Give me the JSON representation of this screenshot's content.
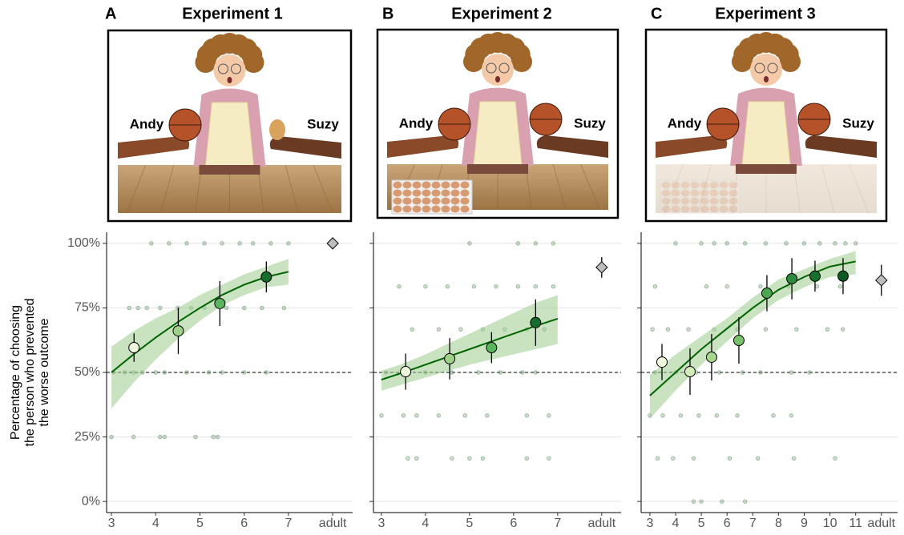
{
  "y_label": [
    "Percentage of choosing",
    "the person who prevented",
    "the worse outcome"
  ],
  "chart_data": [
    {
      "type": "scatter",
      "panel": "A",
      "title": "Experiment 1",
      "image_labels": [
        "Andy",
        "Suzy"
      ],
      "xlim": [
        2.89,
        8.45
      ],
      "ylim": [
        -4.3,
        104.3
      ],
      "xticks": [
        3,
        4,
        5,
        6,
        7,
        {
          "value": 8,
          "label": "adult"
        }
      ],
      "yticks": [
        {
          "value": 0,
          "label": "0%"
        },
        {
          "value": 25,
          "label": "25%"
        },
        {
          "value": 50,
          "label": "50%"
        },
        {
          "value": 75,
          "label": "75%"
        },
        {
          "value": 100,
          "label": "100%"
        }
      ],
      "hline": 50,
      "raw_color": "#6f9a72",
      "fit_color": "#006400",
      "band_color": "#9ccc8e",
      "raw": {
        "x": [
          3,
          3.5,
          4.1,
          4.2,
          4.9,
          5.3,
          5.4,
          3.05,
          3.3,
          3.5,
          3.7,
          4.0,
          4.2,
          4.7,
          5.2,
          5.5,
          6.0,
          6.5,
          3.4,
          3.6,
          3.8,
          4.1,
          4.5,
          4.8,
          5.1,
          5.6,
          6.0,
          6.4,
          6.9,
          3.9,
          4.3,
          4.7,
          5.1,
          5.5,
          5.9,
          6.2,
          6.6,
          7.0
        ],
        "values": [
          25,
          25,
          25,
          25,
          25,
          25,
          25,
          50,
          50,
          50,
          50,
          50,
          50,
          50,
          50,
          50,
          50,
          50,
          75,
          75,
          75,
          75,
          75,
          75,
          75,
          75,
          75,
          75,
          75,
          100,
          100,
          100,
          100,
          100,
          100,
          100,
          100,
          100
        ]
      },
      "fit": {
        "x": [
          3,
          3.5,
          4,
          4.5,
          5,
          5.5,
          6,
          6.5,
          7
        ],
        "values": [
          50,
          57,
          63.5,
          69.5,
          75,
          80,
          84,
          87,
          89
        ],
        "lower": [
          36,
          46,
          55,
          63,
          70,
          76,
          80,
          83,
          84
        ],
        "upper": [
          60,
          66,
          71,
          75,
          80,
          84,
          88,
          91,
          94
        ]
      },
      "means": {
        "x": [
          3.51,
          4.51,
          5.45,
          6.5
        ],
        "values": [
          59.6,
          66.1,
          76.7,
          87
        ],
        "errors": [
          5.5,
          9,
          8.7,
          6
        ],
        "colors": [
          "#eef6dc",
          "#9fd08a",
          "#5bb55e",
          "#136e2c"
        ]
      },
      "adult": {
        "x": 8,
        "value": 100,
        "color": "#bdbdbd"
      }
    },
    {
      "type": "scatter",
      "panel": "B",
      "title": "Experiment 2",
      "image_labels": [
        "Andy",
        "Suzy"
      ],
      "xlim": [
        2.82,
        8.44
      ],
      "ylim": [
        -4.3,
        104.3
      ],
      "xticks": [
        3,
        4,
        5,
        6,
        7,
        {
          "value": 8,
          "label": "adult"
        }
      ],
      "yticks": [
        0,
        25,
        50,
        75,
        100
      ],
      "hline": 50,
      "raw_color": "#6f9a72",
      "fit_color": "#006400",
      "band_color": "#9ccc8e",
      "raw": {
        "x": [
          5.0,
          6.1,
          6.5,
          6.9,
          3.4,
          4.0,
          4.5,
          5.1,
          5.6,
          6.1,
          6.5,
          6.9,
          3.7,
          4.3,
          4.8,
          5.3,
          5.8,
          6.3,
          6.7,
          3.1,
          3.5,
          4.0,
          4.6,
          5.2,
          5.7,
          6.2,
          6.5,
          3.0,
          3.5,
          3.8,
          4.3,
          4.9,
          5.4,
          6.3,
          6.8,
          3.6,
          3.8,
          4.6,
          5.0,
          5.3,
          6.3,
          6.8
        ],
        "values": [
          100,
          100,
          100,
          100,
          83.3,
          83.3,
          83.3,
          83.3,
          83.3,
          83.3,
          83.3,
          83.3,
          66.7,
          66.7,
          66.7,
          66.7,
          66.7,
          66.7,
          66.7,
          50,
          50,
          50,
          50,
          50,
          50,
          50,
          50,
          33.3,
          33.3,
          33.3,
          33.3,
          33.3,
          33.3,
          33.3,
          33.3,
          16.7,
          16.7,
          16.7,
          16.7,
          16.7,
          16.7,
          16.7
        ]
      },
      "fit": {
        "x": [
          3,
          3.5,
          4,
          4.5,
          5,
          5.5,
          6,
          6.5,
          7
        ],
        "values": [
          47.2,
          50,
          53,
          56,
          59,
          62,
          65,
          68,
          70.8
        ],
        "lower": [
          42.9,
          45.5,
          48,
          50.5,
          53,
          55,
          57,
          59,
          61
        ],
        "upper": [
          50.6,
          53.5,
          57,
          61,
          65,
          69,
          73,
          77,
          80
        ]
      },
      "means": {
        "x": [
          3.55,
          4.55,
          5.5,
          6.5
        ],
        "values": [
          50.3,
          55.3,
          59.6,
          69.3
        ],
        "errors": [
          7,
          8,
          6,
          9
        ],
        "colors": [
          "#eef6dc",
          "#9fd08a",
          "#5bb55e",
          "#136e2c"
        ]
      },
      "adult": {
        "x": 8,
        "value": 90.7,
        "error": 4,
        "color": "#bdbdbd"
      }
    },
    {
      "type": "scatter",
      "panel": "C",
      "title": "Experiment 3",
      "image_labels": [
        "Andy",
        "Suzy"
      ],
      "xlim": [
        2.66,
        12.63
      ],
      "ylim": [
        -4.3,
        104.3
      ],
      "xticks": [
        3,
        4,
        5,
        6,
        7,
        8,
        9,
        10,
        11,
        {
          "value": 12,
          "label": "adult"
        }
      ],
      "yticks": [
        0,
        25,
        50,
        75,
        100
      ],
      "hline": 50,
      "raw_color": "#6f9a72",
      "fit_color": "#006400",
      "band_color": "#9ccc8e",
      "raw": {
        "x": [
          4,
          5,
          5.5,
          6,
          6.7,
          7.5,
          8.3,
          9,
          9.6,
          10.2,
          10.6,
          11,
          3.2,
          5.2,
          6,
          7.3,
          8.4,
          9.5,
          10.4,
          3.1,
          3.7,
          4.5,
          5.5,
          6.4,
          7.5,
          8.7,
          9.9,
          10.5,
          3.2,
          4,
          4.8,
          5.7,
          6.6,
          7.3,
          8.5,
          9.2,
          3,
          3.5,
          4.2,
          4.9,
          5.6,
          6.4,
          7.8,
          8.5,
          3.3,
          3.9,
          4.7,
          6.1,
          7.2,
          8.6,
          10.2,
          4.7,
          5.0,
          5.8,
          6.7
        ],
        "values": [
          100,
          100,
          100,
          100,
          100,
          100,
          100,
          100,
          100,
          100,
          100,
          100,
          83.3,
          83.3,
          83.3,
          83.3,
          83.3,
          83.3,
          83.3,
          66.7,
          66.7,
          66.7,
          66.7,
          66.7,
          66.7,
          66.7,
          66.7,
          66.7,
          50,
          50,
          50,
          50,
          50,
          50,
          50,
          50,
          33.3,
          33.3,
          33.3,
          33.3,
          33.3,
          33.3,
          33.3,
          33.3,
          16.7,
          16.7,
          16.7,
          16.7,
          16.7,
          16.7,
          16.7,
          0,
          0,
          0,
          0
        ]
      },
      "fit": {
        "x": [
          3,
          4,
          5,
          6,
          7,
          8,
          9,
          10,
          11
        ],
        "values": [
          41,
          50,
          59,
          67,
          75,
          82,
          87,
          91,
          93
        ],
        "lower": [
          32,
          43,
          53,
          62,
          71,
          78,
          83,
          87,
          88
        ],
        "upper": [
          49,
          57,
          64,
          71,
          79,
          86,
          90,
          94,
          97
        ]
      },
      "means": {
        "x": [
          3.47,
          4.56,
          5.4,
          6.46,
          7.55,
          8.52,
          9.42,
          10.51
        ],
        "values": [
          54,
          50.3,
          55.9,
          62.4,
          80.7,
          86.3,
          87.3,
          87.3
        ],
        "errors": [
          7,
          9,
          9,
          9,
          7,
          8,
          6,
          7
        ],
        "colors": [
          "#eef6dc",
          "#d3ebb8",
          "#a9d68f",
          "#78c06a",
          "#4aa650",
          "#2b8a3c",
          "#17702e",
          "#0a5a22"
        ]
      },
      "adult": {
        "x": 12,
        "value": 85.7,
        "error": 6,
        "color": "#bdbdbd"
      }
    }
  ]
}
